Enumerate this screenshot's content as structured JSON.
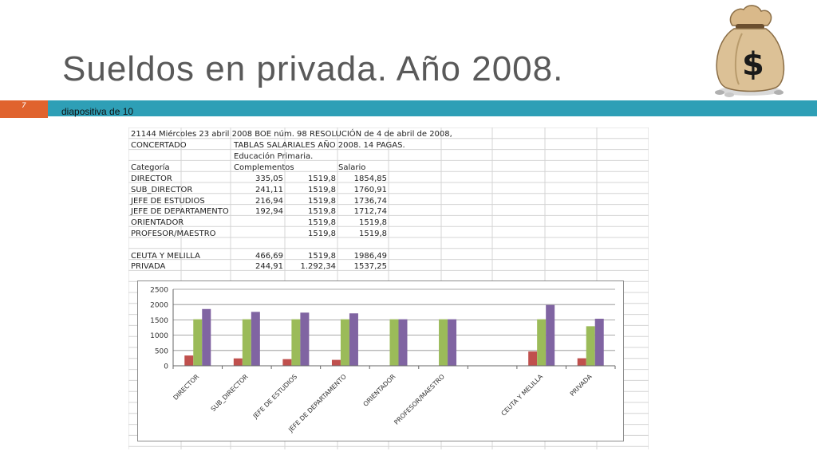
{
  "slide": {
    "title": "Sueldos en privada. Año 2008.",
    "slide_number": "7",
    "footer_label": "diapositiva de 10",
    "bag_symbol": "$",
    "colors": {
      "accent_orange": "#e0632e",
      "accent_teal": "#2e9fb6"
    }
  },
  "sheet": {
    "header_line": "21144 Miércoles 23 abril 2008 BOE núm. 98 RESOLUCIÓN de 4 de abril de 2008,",
    "concertado": "CONCERTADO",
    "tablas": "TABLAS SALARIALES AÑO 2008. 14 PAGAS.",
    "educacion": "Educación Primaria.",
    "col_categoria": "Categoría",
    "col_complementos": "Complementos",
    "col_salario": "Salario",
    "rows": [
      {
        "cat": "DIRECTOR",
        "comp": "335,05",
        "base": "1519,8",
        "sal": "1854,85"
      },
      {
        "cat": "SUB_DIRECTOR",
        "comp": "241,11",
        "base": "1519,8",
        "sal": "1760,91"
      },
      {
        "cat": "JEFE DE ESTUDIOS",
        "comp": "216,94",
        "base": "1519,8",
        "sal": "1736,74"
      },
      {
        "cat": "JEFE DE DEPARTAMENTO",
        "comp": "192,94",
        "base": "1519,8",
        "sal": "1712,74"
      },
      {
        "cat": "ORIENTADOR",
        "comp": "",
        "base": "1519,8",
        "sal": "1519,8"
      },
      {
        "cat": "PROFESOR/MAESTRO",
        "comp": "",
        "base": "1519,8",
        "sal": "1519,8"
      },
      {
        "cat": "",
        "comp": "",
        "base": "",
        "sal": ""
      },
      {
        "cat": "CEUTA Y MELILLA",
        "comp": "466,69",
        "base": "1519,8",
        "sal": "1986,49"
      },
      {
        "cat": "PRIVADA",
        "comp": "244,91",
        "base": "1.292,34",
        "sal": "1537,25"
      }
    ]
  },
  "chart_data": {
    "type": "bar",
    "categories": [
      "DIRECTOR",
      "SUB_DIRECTOR",
      "JEFE DE ESTUDIOS",
      "JEFE DE DEPARTAMENTO",
      "ORIENTADOR",
      "PROFESOR/MAESTRO",
      "",
      "CEUTA Y MELILLA",
      "PRIVADA"
    ],
    "series": [
      {
        "values": [
          335.05,
          241.11,
          216.94,
          192.94,
          0,
          0,
          0,
          466.69,
          244.91
        ],
        "color": "#c0504d"
      },
      {
        "values": [
          1519.8,
          1519.8,
          1519.8,
          1519.8,
          1519.8,
          1519.8,
          0,
          1519.8,
          1292.34
        ],
        "color": "#9bbb59"
      },
      {
        "values": [
          1854.85,
          1760.91,
          1736.74,
          1712.74,
          1519.8,
          1519.8,
          0,
          1986.49,
          1537.25
        ],
        "color": "#8064a2"
      }
    ],
    "ylim": [
      0,
      2500
    ],
    "yticks": [
      0,
      500,
      1000,
      1500,
      2000,
      2500
    ],
    "grid": true,
    "legend": "none"
  }
}
